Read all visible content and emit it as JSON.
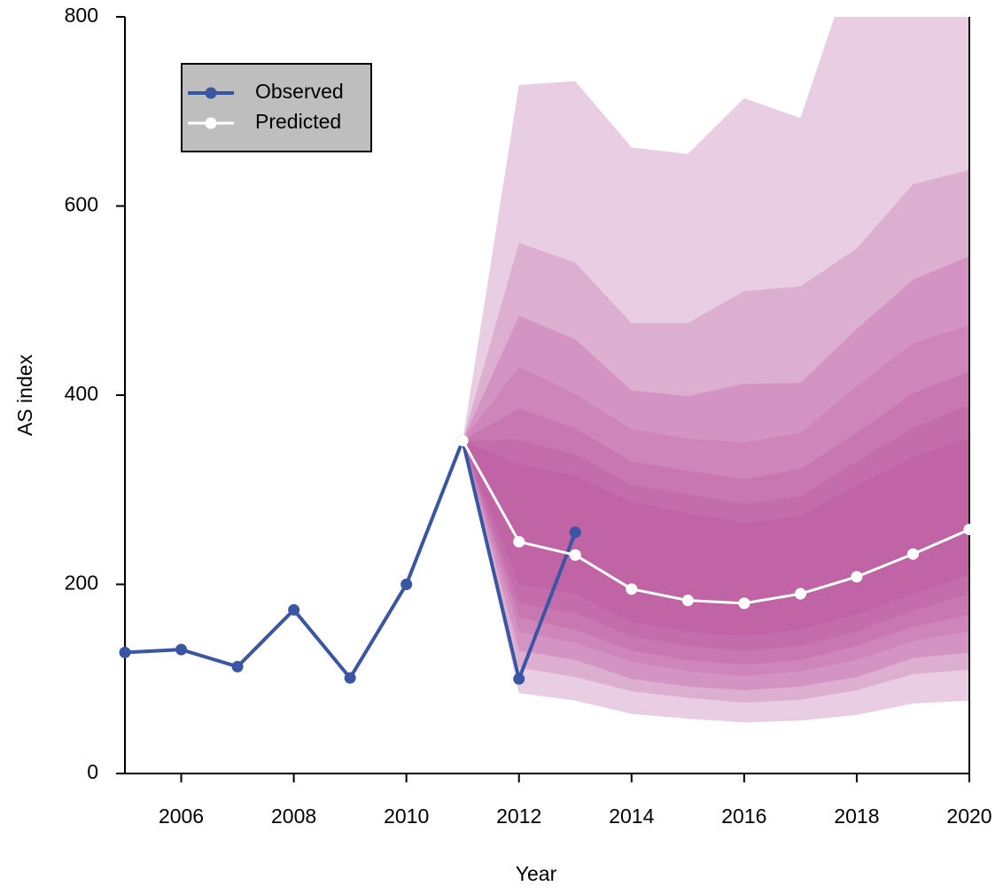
{
  "chart_data": {
    "type": "fan",
    "x_label": "Year",
    "y_label": "AS index",
    "xlim": [
      2005,
      2020
    ],
    "xticks": [
      2006,
      2008,
      2010,
      2012,
      2014,
      2016,
      2018,
      2020
    ],
    "ylim": [
      0,
      800
    ],
    "yticks": [
      0,
      200,
      400,
      600,
      800
    ],
    "legend_position": "upper left",
    "series": [
      {
        "name": "Observed",
        "color": "#3a55a4",
        "x": [
          2005,
          2006,
          2007,
          2008,
          2009,
          2010,
          2011,
          2012,
          2013
        ],
        "values": [
          128,
          131,
          113,
          173,
          101,
          200,
          352,
          100,
          255
        ]
      },
      {
        "name": "Predicted",
        "color": "#ffffff",
        "x": [
          2011,
          2012,
          2013,
          2014,
          2015,
          2016,
          2017,
          2018,
          2019,
          2020
        ],
        "values": [
          352,
          245,
          231,
          195,
          183,
          180,
          190,
          208,
          232,
          258
        ]
      }
    ],
    "fan_x": [
      2011,
      2012,
      2013,
      2014,
      2015,
      2016,
      2017,
      2018,
      2019,
      2020
    ],
    "fan": [
      {
        "color": "#e8cde3",
        "upper": [
          352,
          728,
          732,
          662,
          655,
          714,
          693,
          870,
          940,
          1000
        ],
        "lower": [
          352,
          85,
          77,
          63,
          58,
          54,
          56,
          62,
          74,
          77
        ]
      },
      {
        "color": "#dcaed0",
        "upper": [
          352,
          561,
          540,
          476,
          476,
          510,
          515,
          555,
          623,
          638
        ],
        "lower": [
          352,
          112,
          102,
          87,
          80,
          75,
          78,
          88,
          105,
          110
        ]
      },
      {
        "color": "#d494c3",
        "upper": [
          352,
          484,
          459,
          405,
          399,
          412,
          413,
          470,
          522,
          547
        ],
        "lower": [
          352,
          130,
          120,
          100,
          92,
          88,
          92,
          102,
          122,
          128
        ]
      },
      {
        "color": "#cd85ba",
        "upper": [
          352,
          430,
          401,
          364,
          354,
          350,
          360,
          410,
          455,
          474
        ],
        "lower": [
          352,
          150,
          138,
          118,
          108,
          103,
          108,
          120,
          140,
          150
        ]
      },
      {
        "color": "#c877b1",
        "upper": [
          352,
          386,
          365,
          330,
          320,
          311,
          322,
          360,
          402,
          425
        ],
        "lower": [
          352,
          165,
          152,
          130,
          120,
          115,
          120,
          135,
          155,
          168
        ]
      },
      {
        "color": "#c46dab",
        "upper": [
          352,
          353,
          337,
          305,
          295,
          285,
          293,
          330,
          365,
          390
        ],
        "lower": [
          352,
          180,
          170,
          145,
          135,
          130,
          135,
          150,
          172,
          190
        ]
      },
      {
        "color": "#c064a5",
        "upper": [
          352,
          327,
          315,
          287,
          275,
          265,
          272,
          305,
          335,
          355
        ],
        "lower": [
          352,
          200,
          190,
          160,
          150,
          145,
          152,
          168,
          190,
          210
        ]
      }
    ]
  }
}
